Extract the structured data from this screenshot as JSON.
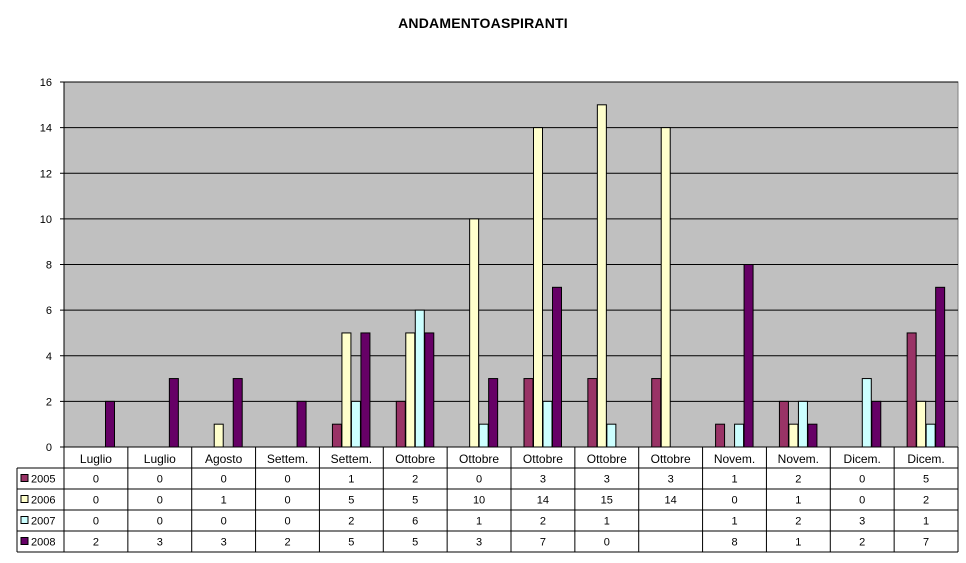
{
  "chart_data": {
    "type": "bar",
    "title": "ANDAMENTOASPIRANTI",
    "xlabel": "",
    "ylabel": "",
    "ylim": [
      0,
      16
    ],
    "yticks": [
      0,
      2,
      4,
      6,
      8,
      10,
      12,
      14,
      16
    ],
    "grid": true,
    "legend": "data-table-left",
    "categories": [
      "Luglio",
      "Luglio",
      "Agosto",
      "Settem.",
      "Settem.",
      "Ottobre",
      "Ottobre",
      "Ottobre",
      "Ottobre",
      "Ottobre",
      "Novem.",
      "Novem.",
      "Dicem.",
      "Dicem."
    ],
    "series": [
      {
        "name": "2005",
        "color": "#993366",
        "values": [
          0,
          0,
          0,
          0,
          1,
          2,
          0,
          3,
          3,
          3,
          1,
          2,
          0,
          5
        ]
      },
      {
        "name": "2006",
        "color": "#FFFFCC",
        "values": [
          0,
          0,
          1,
          0,
          5,
          5,
          10,
          14,
          15,
          14,
          0,
          1,
          0,
          2
        ]
      },
      {
        "name": "2007",
        "color": "#CCFFFF",
        "values": [
          0,
          0,
          0,
          0,
          2,
          6,
          1,
          2,
          1,
          null,
          1,
          2,
          3,
          1
        ]
      },
      {
        "name": "2008",
        "color": "#660066",
        "values": [
          2,
          3,
          3,
          2,
          5,
          5,
          3,
          7,
          0,
          null,
          8,
          1,
          2,
          7
        ]
      }
    ],
    "plot_background": "#C0C0C0"
  }
}
